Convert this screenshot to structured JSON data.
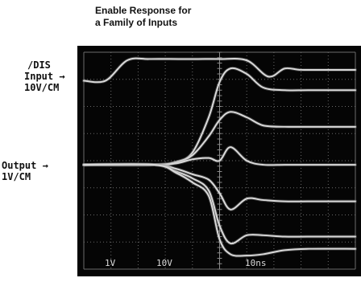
{
  "chart_data": {
    "type": "line",
    "title_line1": "Enable Response for",
    "title_line2": "a Family of Inputs",
    "labels": {
      "dis_line1": "/DIS",
      "dis_line2": "Input →",
      "dis_line3": "10V/CM",
      "out_line1": "Output →",
      "out_line2": "1V/CM"
    },
    "scope_labels": {
      "ch1": "1V",
      "ch2": "10V",
      "time": "10ns"
    },
    "grid": true,
    "divisions": {
      "x": 10,
      "y": 8
    },
    "xlim": [
      0,
      10
    ],
    "ylim": [
      0,
      8
    ],
    "colors": {
      "screen": "#050505",
      "trace": "#d9d9d9",
      "grid": "#6a6a6a"
    },
    "series": [
      {
        "x": [
          0,
          0.8,
          1.6,
          2.4,
          3.5,
          4.2,
          5.0,
          6.0,
          6.8,
          7.4,
          8.0,
          9.0,
          10.0
        ],
        "y": [
          6.95,
          6.95,
          7.7,
          7.75,
          7.75,
          7.75,
          7.75,
          7.7,
          7.1,
          7.4,
          7.35,
          7.35,
          7.35
        ]
      },
      {
        "x": [
          0,
          2.6,
          3.4,
          4.0,
          4.6,
          5.0,
          5.4,
          6.0,
          6.6,
          7.4,
          8.3,
          10.0
        ],
        "y": [
          3.85,
          3.85,
          3.95,
          4.3,
          5.6,
          6.9,
          7.4,
          7.2,
          6.7,
          6.6,
          6.6,
          6.6
        ]
      },
      {
        "x": [
          0,
          2.6,
          3.4,
          4.0,
          4.6,
          5.0,
          5.4,
          6.0,
          6.6,
          7.4,
          8.3,
          10.0
        ],
        "y": [
          3.85,
          3.85,
          3.95,
          4.2,
          4.9,
          5.5,
          5.8,
          5.6,
          5.3,
          5.25,
          5.25,
          5.25
        ]
      },
      {
        "x": [
          0,
          2.6,
          3.4,
          4.0,
          4.6,
          5.0,
          5.4,
          6.0,
          6.6,
          7.4,
          8.3,
          10.0
        ],
        "y": [
          3.85,
          3.85,
          3.9,
          4.05,
          4.1,
          4.0,
          4.5,
          4.0,
          3.85,
          3.85,
          3.85,
          3.85
        ]
      },
      {
        "x": [
          0,
          2.6,
          3.4,
          4.0,
          4.6,
          5.0,
          5.4,
          6.0,
          6.6,
          7.4,
          8.3,
          10.0
        ],
        "y": [
          3.85,
          3.85,
          3.7,
          3.5,
          3.3,
          2.8,
          2.2,
          2.6,
          2.55,
          2.5,
          2.5,
          2.5
        ]
      },
      {
        "x": [
          0,
          2.6,
          3.4,
          4.0,
          4.6,
          5.0,
          5.4,
          6.0,
          6.6,
          7.4,
          8.3,
          10.0
        ],
        "y": [
          3.85,
          3.85,
          3.6,
          3.35,
          2.9,
          1.6,
          0.95,
          1.25,
          1.25,
          1.2,
          1.2,
          1.2
        ]
      },
      {
        "x": [
          0,
          2.6,
          3.4,
          4.0,
          4.6,
          5.0,
          5.4,
          6.0,
          6.6,
          7.4,
          8.3,
          10.0
        ],
        "y": [
          3.85,
          3.85,
          3.55,
          3.2,
          2.7,
          1.1,
          0.55,
          0.5,
          0.55,
          0.7,
          0.75,
          0.75
        ]
      }
    ]
  }
}
